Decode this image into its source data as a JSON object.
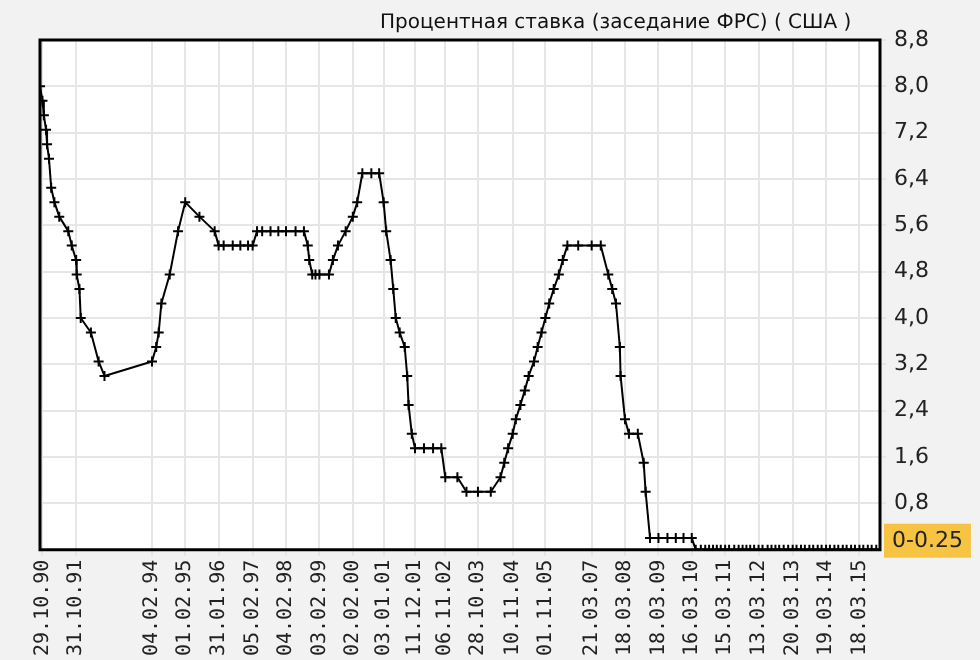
{
  "chart_data": {
    "type": "line",
    "title": "Процентная ставка (заседание ФРС) ( США )",
    "x": [
      "1990-10-02",
      "1990-10-29",
      "1990-11-13",
      "1990-12-07",
      "1990-12-18",
      "1991-01-08",
      "1991-02-01",
      "1991-03-08",
      "1991-04-30",
      "1991-08-06",
      "1991-09-13",
      "1991-10-31",
      "1991-11-06",
      "1991-12-06",
      "1991-12-20",
      "1992-04-09",
      "1992-07-02",
      "1992-09-04",
      "1994-02-04",
      "1994-03-22",
      "1994-04-18",
      "1994-05-17",
      "1994-08-16",
      "1994-11-15",
      "1995-02-01",
      "1995-07-06",
      "1995-12-19",
      "1996-01-31",
      "1996-03-26",
      "1996-07-03",
      "1996-09-24",
      "1996-12-17",
      "1997-02-05",
      "1997-03-25",
      "1997-05-20",
      "1997-08-19",
      "1997-11-12",
      "1998-02-04",
      "1998-05-19",
      "1998-08-18",
      "1998-09-29",
      "1998-10-15",
      "1998-11-17",
      "1998-12-22",
      "1999-02-03",
      "1999-05-18",
      "1999-06-30",
      "1999-08-24",
      "1999-11-16",
      "2000-02-02",
      "2000-03-21",
      "2000-05-16",
      "2000-08-22",
      "2000-11-15",
      "2001-01-03",
      "2001-01-31",
      "2001-03-20",
      "2001-04-18",
      "2001-05-15",
      "2001-06-27",
      "2001-08-21",
      "2001-09-17",
      "2001-10-02",
      "2001-11-06",
      "2001-12-11",
      "2002-03-19",
      "2002-06-26",
      "2002-09-24",
      "2002-11-06",
      "2003-03-18",
      "2003-06-25",
      "2003-10-28",
      "2004-03-16",
      "2004-06-30",
      "2004-08-10",
      "2004-09-21",
      "2004-11-10",
      "2004-12-14",
      "2005-02-02",
      "2005-03-22",
      "2005-05-03",
      "2005-06-30",
      "2005-08-09",
      "2005-09-20",
      "2005-11-01",
      "2005-12-13",
      "2006-01-31",
      "2006-03-28",
      "2006-05-10",
      "2006-06-29",
      "2006-10-25",
      "2007-03-21",
      "2007-06-28",
      "2007-09-18",
      "2007-10-31",
      "2007-12-11",
      "2008-01-22",
      "2008-01-30",
      "2008-03-18",
      "2008-04-30",
      "2008-08-05",
      "2008-10-08",
      "2008-10-29",
      "2008-12-16",
      "2009-03-18",
      "2009-06-24",
      "2009-09-23",
      "2009-12-16",
      "2010-03-16",
      "2010-04-28",
      "2010-06-23",
      "2010-08-10",
      "2010-09-21",
      "2010-11-03",
      "2010-12-14",
      "2011-01-26",
      "2011-03-15",
      "2011-04-27",
      "2011-06-22",
      "2011-08-09",
      "2011-09-21",
      "2011-11-02",
      "2011-12-13",
      "2012-01-25",
      "2012-03-13",
      "2012-04-25",
      "2012-06-20",
      "2012-08-01",
      "2012-09-13",
      "2012-10-24",
      "2012-12-12",
      "2013-01-30",
      "2013-03-20",
      "2013-05-01",
      "2013-06-19",
      "2013-07-31",
      "2013-09-18",
      "2013-10-30",
      "2013-12-18",
      "2014-01-29",
      "2014-03-19",
      "2014-04-30",
      "2014-06-18",
      "2014-07-30",
      "2014-09-17",
      "2014-10-29",
      "2014-12-17",
      "2015-01-28",
      "2015-03-18",
      "2015-04-29",
      "2015-06-17",
      "2015-07-29",
      "2015-09-17",
      "2015-10-28"
    ],
    "series": [
      {
        "color": "#000000",
        "values": [
          8.0,
          7.75,
          7.5,
          7.25,
          7.0,
          6.75,
          6.25,
          6.0,
          5.75,
          5.5,
          5.25,
          5.0,
          4.75,
          4.5,
          4.0,
          3.75,
          3.25,
          3.0,
          3.25,
          3.5,
          3.75,
          4.25,
          4.75,
          5.5,
          6.0,
          5.75,
          5.5,
          5.25,
          5.25,
          5.25,
          5.25,
          5.25,
          5.25,
          5.5,
          5.5,
          5.5,
          5.5,
          5.5,
          5.5,
          5.5,
          5.25,
          5.0,
          4.75,
          4.75,
          4.75,
          4.75,
          5.0,
          5.25,
          5.5,
          5.75,
          6.0,
          6.5,
          6.5,
          6.5,
          6.0,
          5.5,
          5.0,
          4.5,
          4.0,
          3.75,
          3.5,
          3.0,
          2.5,
          2.0,
          1.75,
          1.75,
          1.75,
          1.75,
          1.25,
          1.25,
          1.0,
          1.0,
          1.0,
          1.25,
          1.5,
          1.75,
          2.0,
          2.25,
          2.5,
          2.75,
          3.0,
          3.25,
          3.5,
          3.75,
          4.0,
          4.25,
          4.5,
          4.75,
          5.0,
          5.25,
          5.25,
          5.25,
          5.25,
          4.75,
          4.5,
          4.25,
          3.5,
          3.0,
          2.25,
          2.0,
          2.0,
          1.5,
          1.0,
          0.2,
          0.2,
          0.2,
          0.2,
          0.2,
          0.2,
          0,
          0,
          0,
          0,
          0,
          0,
          0,
          0,
          0,
          0,
          0,
          0,
          0,
          0,
          0,
          0,
          0,
          0,
          0,
          0,
          0,
          0,
          0,
          0,
          0,
          0,
          0,
          0,
          0,
          0,
          0,
          0,
          0,
          0,
          0,
          0,
          0,
          0,
          0,
          0,
          0,
          0,
          0,
          0,
          0
        ]
      }
    ],
    "xlim": [
      "1990-10-02",
      "2015-10-28"
    ],
    "xticks": [
      {
        "value": "1990-10-29",
        "label": "29.10.90"
      },
      {
        "value": "1991-10-31",
        "label": "31.10.91"
      },
      {
        "value": "1994-02-04",
        "label": "04.02.94"
      },
      {
        "value": "1995-02-01",
        "label": "01.02.95"
      },
      {
        "value": "1996-01-31",
        "label": "31.01.96"
      },
      {
        "value": "1997-02-05",
        "label": "05.02.97"
      },
      {
        "value": "1998-02-04",
        "label": "04.02.98"
      },
      {
        "value": "1999-02-03",
        "label": "03.02.99"
      },
      {
        "value": "2000-02-02",
        "label": "02.02.00"
      },
      {
        "value": "2001-01-03",
        "label": "03.01.01"
      },
      {
        "value": "2001-12-11",
        "label": "11.12.01"
      },
      {
        "value": "2002-11-06",
        "label": "06.11.02"
      },
      {
        "value": "2003-10-28",
        "label": "28.10.03"
      },
      {
        "value": "2004-11-10",
        "label": "10.11.04"
      },
      {
        "value": "2005-11-01",
        "label": "01.11.05"
      },
      {
        "value": "2007-03-21",
        "label": "21.03.07"
      },
      {
        "value": "2008-03-18",
        "label": "18.03.08"
      },
      {
        "value": "2009-03-18",
        "label": "18.03.09"
      },
      {
        "value": "2010-03-16",
        "label": "16.03.10"
      },
      {
        "value": "2011-03-15",
        "label": "15.03.11"
      },
      {
        "value": "2012-03-13",
        "label": "13.03.12"
      },
      {
        "value": "2013-03-20",
        "label": "20.03.13"
      },
      {
        "value": "2014-03-19",
        "label": "19.03.14"
      },
      {
        "value": "2015-03-18",
        "label": "18.03.15"
      }
    ],
    "ylim": [
      0,
      8.8
    ],
    "yticks": [
      {
        "value": 0.8,
        "label": "0,8"
      },
      {
        "value": 1.6,
        "label": "1,6"
      },
      {
        "value": 2.4,
        "label": "2,4"
      },
      {
        "value": 3.2,
        "label": "3,2"
      },
      {
        "value": 4.0,
        "label": "4,0"
      },
      {
        "value": 4.8,
        "label": "4,8"
      },
      {
        "value": 5.6,
        "label": "5,6"
      },
      {
        "value": 6.4,
        "label": "6,4"
      },
      {
        "value": 7.2,
        "label": "7,2"
      },
      {
        "value": 8.0,
        "label": "8,0"
      },
      {
        "value": 8.8,
        "label": "8,8"
      }
    ],
    "annotations": [
      {
        "text": "0-0.25",
        "x": "2015-10-28",
        "y": 0
      }
    ],
    "grid": true,
    "marker": "cross",
    "line_style": "solid",
    "legend": false
  }
}
